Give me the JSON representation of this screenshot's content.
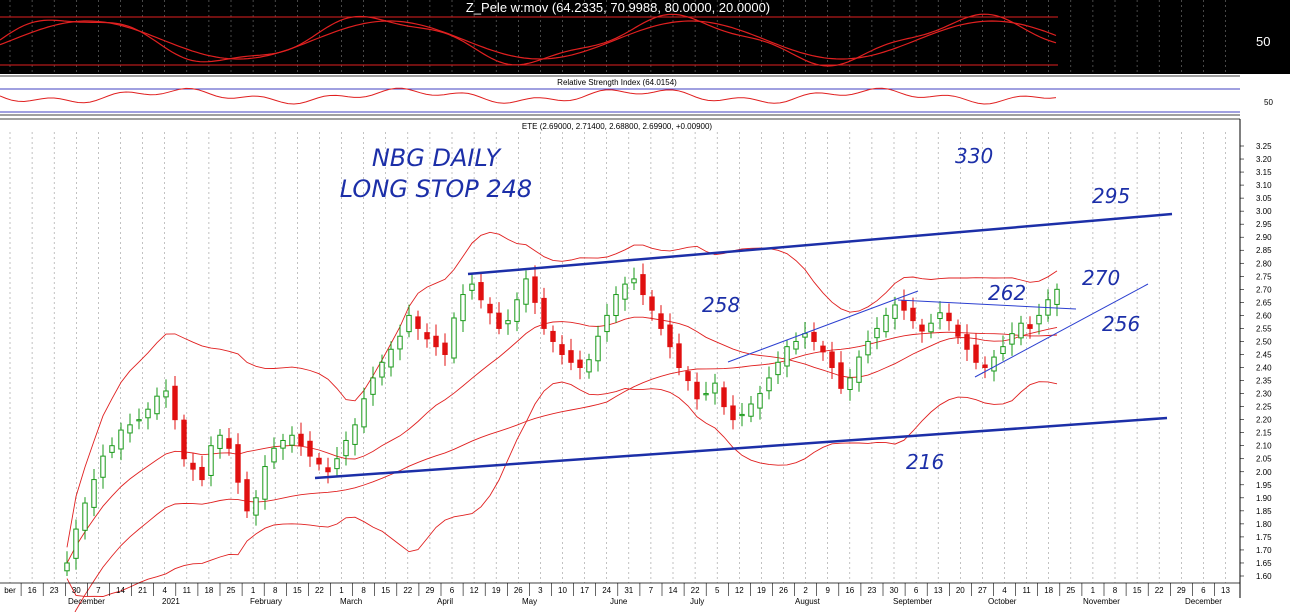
{
  "oscillator": {
    "title": "Z_Pele w:mov (64.2335, 70.9988, 80.0000, 20.0000)",
    "axis_label": "50",
    "background": "#000000",
    "line_color": "#e02020"
  },
  "rsi": {
    "title": "Relative Strength Index (64.0154)",
    "axis_label": "50",
    "line_color": "#e02020",
    "band_color": "#4040c0"
  },
  "price": {
    "title": "ETE (2.69000, 2.71400, 2.68800, 2.69900, +0.00900)",
    "y_ticks": [
      "3.25",
      "3.20",
      "3.15",
      "3.10",
      "3.05",
      "3.00",
      "2.95",
      "2.90",
      "2.85",
      "2.80",
      "2.75",
      "2.70",
      "2.65",
      "2.60",
      "2.55",
      "2.50",
      "2.45",
      "2.40",
      "2.35",
      "2.30",
      "2.25",
      "2.20",
      "2.15",
      "2.10",
      "2.05",
      "2.00",
      "1.95",
      "1.90",
      "1.85",
      "1.80",
      "1.75",
      "1.70",
      "1.65",
      "1.60"
    ],
    "x_ticks": [
      "ber",
      "16",
      "23",
      "30",
      "7",
      "14",
      "21",
      "4",
      "11",
      "18",
      "25",
      "1",
      "8",
      "15",
      "22",
      "1",
      "8",
      "15",
      "22",
      "29",
      "6",
      "12",
      "19",
      "26",
      "3",
      "10",
      "17",
      "24",
      "31",
      "7",
      "14",
      "22",
      "5",
      "12",
      "19",
      "26",
      "2",
      "9",
      "16",
      "23",
      "30",
      "6",
      "13",
      "20",
      "27",
      "4",
      "11",
      "18",
      "25",
      "1",
      "8",
      "15",
      "22",
      "29",
      "6",
      "13"
    ],
    "months": [
      "December",
      "2021",
      "February",
      "March",
      "April",
      "May",
      "June",
      "July",
      "August",
      "September",
      "October",
      "November",
      "December"
    ],
    "up_color": "#1a9a1a",
    "down_color": "#e01010",
    "band_color": "#e02020",
    "trend_color": "#1c2fa8"
  },
  "annotations": {
    "title_line1": "NBG DAILY",
    "title_line2": "LONG STOP 248",
    "labels": [
      "330",
      "295",
      "270",
      "262",
      "258",
      "256",
      "216"
    ]
  },
  "chart_data": {
    "type": "candlestick",
    "symbol": "ETE",
    "ylim": [
      1.58,
      3.3
    ],
    "ohlc_last": {
      "open": 2.69,
      "high": 2.714,
      "low": 2.688,
      "close": 2.699,
      "change": 0.009
    },
    "closes": [
      1.65,
      1.78,
      1.88,
      1.97,
      2.06,
      2.1,
      2.16,
      2.18,
      2.2,
      2.24,
      2.29,
      2.31,
      2.2,
      2.05,
      2.01,
      1.97,
      2.1,
      2.14,
      2.09,
      1.96,
      1.85,
      1.9,
      2.02,
      2.09,
      2.12,
      2.14,
      2.1,
      2.06,
      2.03,
      2.0,
      2.05,
      2.12,
      2.18,
      2.28,
      2.36,
      2.42,
      2.47,
      2.52,
      2.6,
      2.55,
      2.51,
      2.48,
      2.45,
      2.59,
      2.68,
      2.72,
      2.66,
      2.61,
      2.55,
      2.58,
      2.66,
      2.74,
      2.65,
      2.55,
      2.5,
      2.45,
      2.42,
      2.4,
      2.43,
      2.52,
      2.6,
      2.68,
      2.72,
      2.74,
      2.68,
      2.62,
      2.55,
      2.48,
      2.4,
      2.35,
      2.28,
      2.3,
      2.34,
      2.25,
      2.2,
      2.22,
      2.26,
      2.3,
      2.36,
      2.42,
      2.48,
      2.5,
      2.53,
      2.5,
      2.46,
      2.4,
      2.32,
      2.36,
      2.44,
      2.5,
      2.55,
      2.6,
      2.64,
      2.62,
      2.58,
      2.54,
      2.57,
      2.61,
      2.58,
      2.52,
      2.47,
      2.42,
      2.4,
      2.44,
      2.48,
      2.53,
      2.57,
      2.55,
      2.6,
      2.66,
      2.7
    ],
    "trend_lines": [
      {
        "from": [
          "2021-01-20",
          1.97
        ],
        "to": [
          "2021-11-28",
          2.2
        ]
      },
      {
        "from": [
          "2021-04-09",
          2.75
        ],
        "to": [
          "2021-11-28",
          2.98
        ]
      }
    ],
    "rsi_value": 64.0154,
    "oscillator_values": [
      64.2335,
      70.9988,
      80.0,
      20.0
    ]
  }
}
